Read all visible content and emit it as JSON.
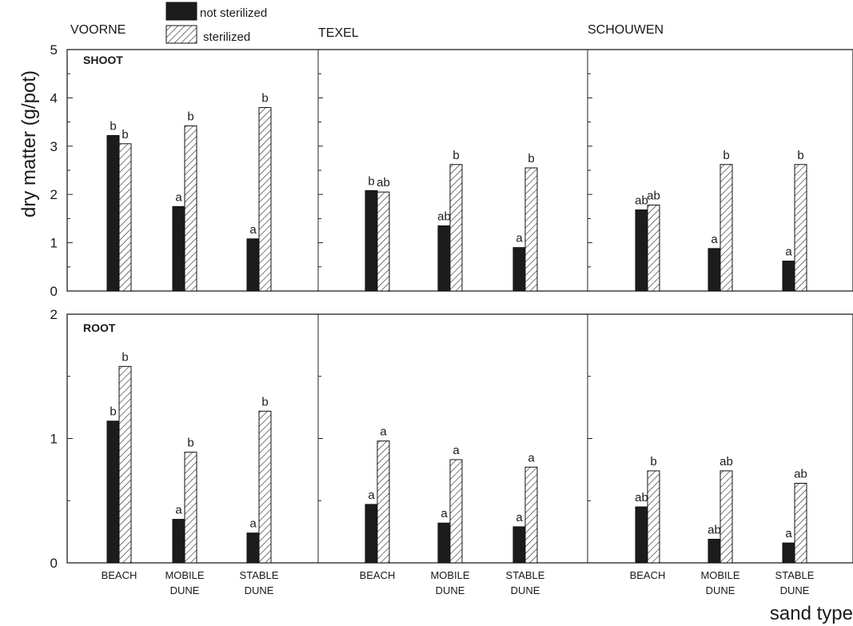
{
  "legend": {
    "not_sterilized": "not sterilized",
    "sterilized": "sterilized"
  },
  "ylabel": "dry matter (g/pot)",
  "xlabel": "sand type",
  "sites": [
    "VOORNE",
    "TEXEL",
    "SCHOUWEN"
  ],
  "categories": [
    [
      "BEACH"
    ],
    [
      "MOBILE",
      "DUNE"
    ],
    [
      "STABLE",
      "DUNE"
    ]
  ],
  "colors": {
    "not_sterilized": "#1c1c1c",
    "sterilized": "hatched"
  },
  "chart_data": [
    {
      "type": "bar",
      "panel": "SHOOT",
      "ylim": [
        0,
        5
      ],
      "yticks": [
        0,
        1,
        2,
        3,
        4,
        5
      ],
      "series_names": [
        "not sterilized",
        "sterilized"
      ],
      "groups": [
        {
          "site": "VOORNE",
          "not_sterilized": [
            3.22,
            1.75,
            1.08
          ],
          "sterilized": [
            3.05,
            3.42,
            3.8
          ],
          "sig_not": [
            "b",
            "a",
            "a"
          ],
          "sig_ster": [
            "b",
            "b",
            "b"
          ]
        },
        {
          "site": "TEXEL",
          "not_sterilized": [
            2.08,
            1.35,
            0.9
          ],
          "sterilized": [
            2.05,
            2.62,
            2.55
          ],
          "sig_not": [
            "b",
            "ab",
            "a"
          ],
          "sig_ster": [
            "ab",
            "b",
            "b"
          ]
        },
        {
          "site": "SCHOUWEN",
          "not_sterilized": [
            1.68,
            0.88,
            0.62
          ],
          "sterilized": [
            1.78,
            2.62,
            2.62
          ],
          "sig_not": [
            "ab",
            "a",
            "a"
          ],
          "sig_ster": [
            "ab",
            "b",
            "b"
          ]
        }
      ]
    },
    {
      "type": "bar",
      "panel": "ROOT",
      "ylim": [
        0,
        2
      ],
      "yticks": [
        0,
        1,
        2
      ],
      "series_names": [
        "not sterilized",
        "sterilized"
      ],
      "groups": [
        {
          "site": "VOORNE",
          "not_sterilized": [
            1.14,
            0.35,
            0.24
          ],
          "sterilized": [
            1.58,
            0.89,
            1.22
          ],
          "sig_not": [
            "b",
            "a",
            "a"
          ],
          "sig_ster": [
            "b",
            "b",
            "b"
          ]
        },
        {
          "site": "TEXEL",
          "not_sterilized": [
            0.47,
            0.32,
            0.29
          ],
          "sterilized": [
            0.98,
            0.83,
            0.77
          ],
          "sig_not": [
            "a",
            "a",
            "a"
          ],
          "sig_ster": [
            "a",
            "a",
            "a"
          ]
        },
        {
          "site": "SCHOUWEN",
          "not_sterilized": [
            0.45,
            0.19,
            0.16
          ],
          "sterilized": [
            0.74,
            0.74,
            0.64
          ],
          "sig_not": [
            "ab",
            "ab",
            "a"
          ],
          "sig_ster": [
            "b",
            "ab",
            "ab"
          ]
        }
      ]
    }
  ]
}
